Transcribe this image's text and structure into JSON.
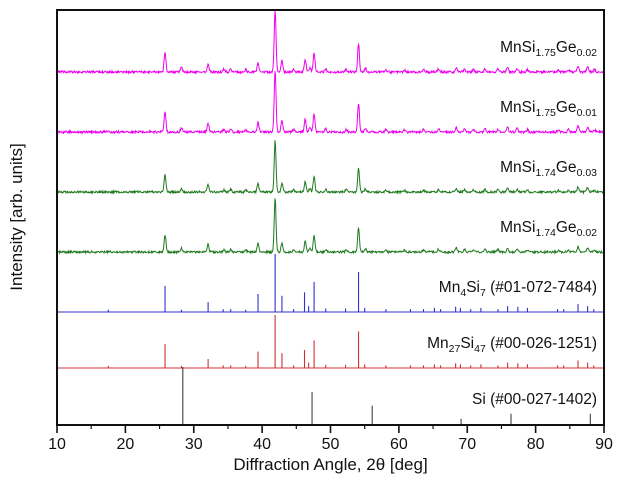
{
  "chart_data": {
    "type": "line",
    "title": "",
    "xlabel": "Diffraction Angle, 2θ [deg]",
    "ylabel": "Intensity [arb. units]",
    "legend": "labels-on-curves",
    "grid": false,
    "x_axis": {
      "min": 10,
      "max": 90,
      "major_ticks": [
        10,
        20,
        30,
        40,
        50,
        60,
        70,
        80,
        90
      ],
      "minor_tick_step": 5
    },
    "y_axis": {
      "ticks": "none",
      "note": "stacked patterns, arbitrary units"
    },
    "colors": {
      "magenta": "#ee00ee",
      "green": "#1f7a1f",
      "blue": "#3030cf",
      "red": "#d03030",
      "black": "#404040",
      "frame": "#111111"
    },
    "trace_peaks": [
      [
        25.8,
        0.33
      ],
      [
        28.2,
        0.07
      ],
      [
        32.1,
        0.14
      ],
      [
        34.4,
        0.04
      ],
      [
        35.4,
        0.05
      ],
      [
        37.6,
        0.04
      ],
      [
        39.4,
        0.16
      ],
      [
        41.9,
        1.0
      ],
      [
        42.9,
        0.18
      ],
      [
        44.6,
        0.04
      ],
      [
        46.3,
        0.2
      ],
      [
        47.0,
        0.07
      ],
      [
        47.6,
        0.3
      ],
      [
        49.3,
        0.05
      ],
      [
        52.3,
        0.04
      ],
      [
        54.1,
        0.46
      ],
      [
        55.1,
        0.06
      ],
      [
        58.1,
        0.04
      ],
      [
        60.8,
        0.03
      ],
      [
        63.6,
        0.04
      ],
      [
        65.8,
        0.05
      ],
      [
        68.4,
        0.07
      ],
      [
        69.6,
        0.05
      ],
      [
        70.9,
        0.04
      ],
      [
        72.6,
        0.05
      ],
      [
        74.5,
        0.05
      ],
      [
        75.9,
        0.07
      ],
      [
        77.3,
        0.06
      ],
      [
        78.8,
        0.04
      ],
      [
        83.3,
        0.03
      ],
      [
        84.8,
        0.04
      ],
      [
        86.2,
        0.1
      ],
      [
        87.6,
        0.08
      ],
      [
        88.6,
        0.04
      ]
    ],
    "stick_peaks": [
      [
        17.5,
        0.04
      ],
      [
        25.8,
        0.45
      ],
      [
        28.2,
        0.04
      ],
      [
        32.1,
        0.17
      ],
      [
        34.3,
        0.05
      ],
      [
        35.4,
        0.05
      ],
      [
        37.6,
        0.04
      ],
      [
        39.4,
        0.31
      ],
      [
        41.9,
        1.0
      ],
      [
        42.9,
        0.28
      ],
      [
        44.6,
        0.05
      ],
      [
        46.2,
        0.34
      ],
      [
        46.8,
        0.1
      ],
      [
        47.6,
        0.52
      ],
      [
        49.3,
        0.06
      ],
      [
        52.2,
        0.06
      ],
      [
        54.1,
        0.69
      ],
      [
        55.0,
        0.07
      ],
      [
        58.1,
        0.05
      ],
      [
        61.7,
        0.05
      ],
      [
        63.6,
        0.05
      ],
      [
        65.2,
        0.07
      ],
      [
        66.1,
        0.05
      ],
      [
        68.3,
        0.09
      ],
      [
        69.0,
        0.07
      ],
      [
        70.5,
        0.05
      ],
      [
        72.0,
        0.07
      ],
      [
        74.5,
        0.05
      ],
      [
        75.9,
        0.1
      ],
      [
        77.4,
        0.09
      ],
      [
        78.8,
        0.07
      ],
      [
        83.2,
        0.05
      ],
      [
        84.1,
        0.05
      ],
      [
        86.2,
        0.14
      ],
      [
        87.6,
        0.1
      ],
      [
        88.5,
        0.05
      ]
    ],
    "si_peaks": [
      [
        28.4,
        1.0
      ],
      [
        47.3,
        0.56
      ],
      [
        56.1,
        0.32
      ],
      [
        69.1,
        0.09
      ],
      [
        76.4,
        0.18
      ],
      [
        88.0,
        0.18
      ]
    ],
    "series": [
      {
        "label": "MnSi_{1.75}Ge_{0.02}",
        "color": "#ee00ee",
        "style": "trace",
        "peaks": "trace_peaks",
        "baseline": 72,
        "scale": 62,
        "noise": 1.1,
        "seed": 11,
        "draw_baseline": false
      },
      {
        "label": "MnSi_{1.75}Ge_{0.01}",
        "color": "#ee00ee",
        "style": "trace",
        "peaks": "trace_peaks",
        "baseline": 132,
        "scale": 62,
        "noise": 1.1,
        "seed": 23,
        "draw_baseline": false
      },
      {
        "label": "MnSi_{1.74}Ge_{0.03}",
        "color": "#1f7a1f",
        "style": "trace",
        "peaks": "trace_peaks",
        "baseline": 192,
        "scale": 52,
        "noise": 1.0,
        "seed": 37,
        "draw_baseline": false
      },
      {
        "label": "MnSi_{1.74}Ge_{0.02}",
        "color": "#1f7a1f",
        "style": "trace",
        "peaks": "trace_peaks",
        "baseline": 252,
        "scale": 54,
        "noise": 1.0,
        "seed": 51,
        "draw_baseline": false
      },
      {
        "label": "Mn_{4}Si_{7} (#01-072-7484)",
        "color": "#3030cf",
        "style": "sticks",
        "peaks": "stick_peaks",
        "baseline": 312,
        "scale": 58,
        "noise": 0,
        "seed": 0,
        "draw_baseline": true
      },
      {
        "label": "Mn_{27}Si_{47} (#00-026-1251)",
        "color": "#d03030",
        "style": "sticks",
        "peaks": "stick_peaks",
        "baseline": 368,
        "scale": 53,
        "noise": 0,
        "seed": 0,
        "draw_baseline": true
      },
      {
        "label": "Si (#00-027-1402)",
        "color": "#404040",
        "style": "sticks",
        "peaks": "si_peaks",
        "baseline": 424,
        "scale": 57,
        "noise": 0,
        "seed": 0,
        "draw_baseline": false
      }
    ]
  }
}
